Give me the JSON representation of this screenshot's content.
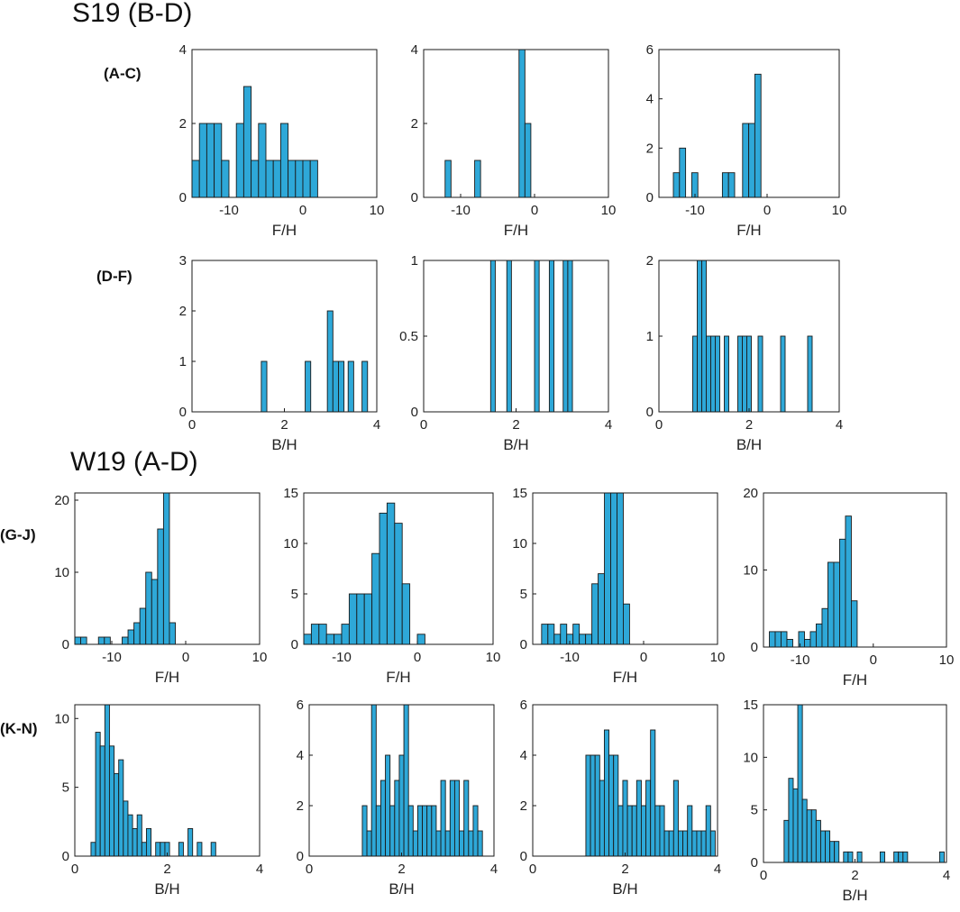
{
  "titles": {
    "s19": "S19 (B-D)",
    "w19": "W19 (A-D)"
  },
  "row_labels": {
    "r1": "(A-C)",
    "r2": "(D-F)",
    "r3": "(G-J)",
    "r4": "(K-N)"
  },
  "colors": {
    "bar_fill": "#2ea8d8",
    "bar_stroke": "#1a1a1a",
    "axis": "#1a1a1a"
  },
  "chart_data": [
    {
      "id": "p1",
      "type": "bar",
      "title": "",
      "xlabel": "F/H",
      "ylabel": "",
      "xlim": [
        -15,
        10
      ],
      "ylim": [
        0,
        4
      ],
      "xticks": [
        -10,
        0,
        10
      ],
      "yticks": [
        0,
        2,
        4
      ],
      "bin_width": 1,
      "bins": [
        [
          -15,
          1
        ],
        [
          -14,
          2
        ],
        [
          -13,
          2
        ],
        [
          -12,
          2
        ],
        [
          -11,
          1
        ],
        [
          -9,
          2
        ],
        [
          -8,
          3
        ],
        [
          -7,
          1
        ],
        [
          -6,
          2
        ],
        [
          -5,
          1
        ],
        [
          -4,
          1
        ],
        [
          -3,
          2
        ],
        [
          -2,
          1
        ],
        [
          -1,
          1
        ],
        [
          0,
          1
        ],
        [
          1,
          1
        ]
      ]
    },
    {
      "id": "p2",
      "type": "bar",
      "title": "",
      "xlabel": "F/H",
      "ylabel": "",
      "xlim": [
        -15,
        10
      ],
      "ylim": [
        0,
        4
      ],
      "xticks": [
        -10,
        0,
        10
      ],
      "yticks": [
        0,
        2,
        4
      ],
      "bin_width": 0.8,
      "bins": [
        [
          -12.1,
          1
        ],
        [
          -8.1,
          1
        ],
        [
          -2.1,
          4
        ],
        [
          -1.3,
          2
        ]
      ]
    },
    {
      "id": "p3",
      "type": "bar",
      "title": "",
      "xlabel": "F/H",
      "ylabel": "",
      "xlim": [
        -15,
        10
      ],
      "ylim": [
        0,
        6
      ],
      "xticks": [
        -10,
        0,
        10
      ],
      "yticks": [
        0,
        2,
        4,
        6
      ],
      "bin_width": 0.85,
      "bins": [
        [
          -13,
          1
        ],
        [
          -12.15,
          2
        ],
        [
          -10.45,
          1
        ],
        [
          -6.2,
          1
        ],
        [
          -5.35,
          1
        ],
        [
          -3.4,
          3
        ],
        [
          -2.55,
          3
        ],
        [
          -1.7,
          5
        ]
      ]
    },
    {
      "id": "p4",
      "type": "bar",
      "title": "",
      "xlabel": "B/H",
      "ylabel": "",
      "xlim": [
        0,
        4
      ],
      "ylim": [
        0,
        3
      ],
      "xticks": [
        0,
        2,
        4
      ],
      "yticks": [
        0,
        1,
        2,
        3
      ],
      "bin_width": 0.12,
      "bins": [
        [
          1.5,
          1
        ],
        [
          2.45,
          1
        ],
        [
          2.93,
          2
        ],
        [
          3.05,
          1
        ],
        [
          3.17,
          1
        ],
        [
          3.38,
          1
        ],
        [
          3.68,
          1
        ]
      ]
    },
    {
      "id": "p5",
      "type": "bar",
      "title": "",
      "xlabel": "B/H",
      "ylabel": "",
      "xlim": [
        0,
        4
      ],
      "ylim": [
        0,
        1
      ],
      "xticks": [
        0,
        2,
        4
      ],
      "yticks": [
        0,
        0.5,
        1
      ],
      "bin_width": 0.1,
      "bins": [
        [
          1.45,
          1
        ],
        [
          1.8,
          1
        ],
        [
          2.4,
          1
        ],
        [
          2.72,
          1
        ],
        [
          3.02,
          1
        ],
        [
          3.12,
          1
        ]
      ]
    },
    {
      "id": "p6",
      "type": "bar",
      "title": "",
      "xlabel": "B/H",
      "ylabel": "",
      "xlim": [
        0,
        4
      ],
      "ylim": [
        0,
        2
      ],
      "xticks": [
        0,
        2,
        4
      ],
      "yticks": [
        0,
        1,
        2
      ],
      "bin_width": 0.1,
      "bins": [
        [
          0.75,
          1
        ],
        [
          0.85,
          2
        ],
        [
          0.95,
          2
        ],
        [
          1.05,
          1
        ],
        [
          1.15,
          1
        ],
        [
          1.25,
          1
        ],
        [
          1.45,
          1
        ],
        [
          1.75,
          1
        ],
        [
          1.85,
          1
        ],
        [
          1.95,
          1
        ],
        [
          2.2,
          1
        ],
        [
          2.7,
          1
        ],
        [
          3.3,
          1
        ]
      ]
    },
    {
      "id": "p7",
      "type": "bar",
      "title": "",
      "xlabel": "F/H",
      "ylabel": "",
      "xlim": [
        -15,
        10
      ],
      "ylim": [
        0,
        21
      ],
      "xticks": [
        -10,
        0,
        10
      ],
      "yticks": [
        0,
        10,
        20
      ],
      "bin_width": 0.8,
      "bins": [
        [
          -15,
          1
        ],
        [
          -14.2,
          1
        ],
        [
          -11.8,
          1
        ],
        [
          -11,
          1
        ],
        [
          -8.6,
          1
        ],
        [
          -7.8,
          2
        ],
        [
          -7,
          3
        ],
        [
          -6.2,
          5
        ],
        [
          -5.4,
          10
        ],
        [
          -4.6,
          9
        ],
        [
          -3.8,
          16
        ],
        [
          -3,
          21
        ],
        [
          -2.2,
          3
        ]
      ]
    },
    {
      "id": "p8",
      "type": "bar",
      "title": "",
      "xlabel": "F/H",
      "ylabel": "",
      "xlim": [
        -15,
        10
      ],
      "ylim": [
        0,
        15
      ],
      "xticks": [
        -10,
        0,
        10
      ],
      "yticks": [
        0,
        5,
        10,
        15
      ],
      "bin_width": 1,
      "bins": [
        [
          -15,
          1
        ],
        [
          -14,
          2
        ],
        [
          -13,
          2
        ],
        [
          -12,
          1
        ],
        [
          -11,
          1
        ],
        [
          -10,
          2
        ],
        [
          -9,
          5
        ],
        [
          -8,
          5
        ],
        [
          -7,
          5
        ],
        [
          -6,
          9
        ],
        [
          -5,
          13
        ],
        [
          -4,
          14
        ],
        [
          -3,
          12
        ],
        [
          -2,
          6
        ],
        [
          0,
          1
        ]
      ]
    },
    {
      "id": "p9",
      "type": "bar",
      "title": "",
      "xlabel": "F/H",
      "ylabel": "",
      "xlim": [
        -15,
        10
      ],
      "ylim": [
        0,
        15
      ],
      "xticks": [
        -10,
        0,
        10
      ],
      "yticks": [
        0,
        5,
        10,
        15
      ],
      "bin_width": 0.85,
      "bins": [
        [
          -13.8,
          2
        ],
        [
          -12.95,
          2
        ],
        [
          -12.1,
          1
        ],
        [
          -11.25,
          2
        ],
        [
          -10.4,
          1
        ],
        [
          -9.55,
          2
        ],
        [
          -8.7,
          1
        ],
        [
          -7.85,
          1
        ],
        [
          -7,
          6
        ],
        [
          -6.15,
          7
        ],
        [
          -5.3,
          15
        ],
        [
          -4.45,
          15
        ],
        [
          -3.6,
          15
        ],
        [
          -2.75,
          4
        ]
      ]
    },
    {
      "id": "p10",
      "type": "bar",
      "title": "",
      "xlabel": "F/H",
      "ylabel": "",
      "xlim": [
        -15,
        10
      ],
      "ylim": [
        0,
        20
      ],
      "xticks": [
        -10,
        0,
        10
      ],
      "yticks": [
        0,
        10,
        20
      ],
      "bin_width": 0.8,
      "bins": [
        [
          -14.2,
          2
        ],
        [
          -13.4,
          2
        ],
        [
          -12.6,
          2
        ],
        [
          -11.8,
          1
        ],
        [
          -10.2,
          2
        ],
        [
          -9.4,
          1
        ],
        [
          -8.6,
          2
        ],
        [
          -7.8,
          3
        ],
        [
          -7,
          5
        ],
        [
          -6.2,
          11
        ],
        [
          -5.4,
          11
        ],
        [
          -4.6,
          14
        ],
        [
          -3.8,
          17
        ],
        [
          -3,
          6
        ]
      ]
    },
    {
      "id": "p11",
      "type": "bar",
      "title": "",
      "xlabel": "B/H",
      "ylabel": "",
      "xlim": [
        0,
        4
      ],
      "ylim": [
        0,
        11
      ],
      "xticks": [
        0,
        2,
        4
      ],
      "yticks": [
        0,
        5,
        10
      ],
      "bin_width": 0.1,
      "bins": [
        [
          0.35,
          1
        ],
        [
          0.45,
          9
        ],
        [
          0.55,
          8
        ],
        [
          0.65,
          11
        ],
        [
          0.75,
          8
        ],
        [
          0.85,
          6
        ],
        [
          0.95,
          7
        ],
        [
          1.05,
          4
        ],
        [
          1.15,
          3
        ],
        [
          1.25,
          2
        ],
        [
          1.35,
          3
        ],
        [
          1.45,
          1
        ],
        [
          1.55,
          2
        ],
        [
          1.75,
          1
        ],
        [
          1.85,
          1
        ],
        [
          1.95,
          1
        ],
        [
          2.25,
          1
        ],
        [
          2.45,
          2
        ],
        [
          2.65,
          1
        ],
        [
          2.95,
          1
        ]
      ]
    },
    {
      "id": "p12",
      "type": "bar",
      "title": "",
      "xlabel": "B/H",
      "ylabel": "",
      "xlim": [
        0,
        4
      ],
      "ylim": [
        0,
        6
      ],
      "xticks": [
        0,
        2,
        4
      ],
      "yticks": [
        0,
        2,
        4,
        6
      ],
      "bin_width": 0.1,
      "bins": [
        [
          1.15,
          2
        ],
        [
          1.25,
          1
        ],
        [
          1.35,
          6
        ],
        [
          1.45,
          2
        ],
        [
          1.55,
          3
        ],
        [
          1.65,
          4
        ],
        [
          1.75,
          2
        ],
        [
          1.85,
          3
        ],
        [
          1.95,
          4
        ],
        [
          2.05,
          6
        ],
        [
          2.15,
          2
        ],
        [
          2.25,
          1
        ],
        [
          2.35,
          2
        ],
        [
          2.45,
          2
        ],
        [
          2.55,
          2
        ],
        [
          2.65,
          2
        ],
        [
          2.75,
          1
        ],
        [
          2.85,
          3
        ],
        [
          2.95,
          1
        ],
        [
          3.05,
          3
        ],
        [
          3.15,
          3
        ],
        [
          3.25,
          1
        ],
        [
          3.35,
          3
        ],
        [
          3.45,
          1
        ],
        [
          3.55,
          2
        ],
        [
          3.65,
          1
        ]
      ]
    },
    {
      "id": "p13",
      "type": "bar",
      "title": "",
      "xlabel": "B/H",
      "ylabel": "",
      "xlim": [
        0,
        4
      ],
      "ylim": [
        0,
        6
      ],
      "xticks": [
        0,
        2,
        4
      ],
      "yticks": [
        0,
        2,
        4,
        6
      ],
      "bin_width": 0.1,
      "bins": [
        [
          1.15,
          4
        ],
        [
          1.25,
          4
        ],
        [
          1.35,
          4
        ],
        [
          1.45,
          3
        ],
        [
          1.55,
          5
        ],
        [
          1.65,
          4
        ],
        [
          1.75,
          4
        ],
        [
          1.85,
          2
        ],
        [
          1.95,
          3
        ],
        [
          2.05,
          2
        ],
        [
          2.15,
          2
        ],
        [
          2.25,
          3
        ],
        [
          2.35,
          2
        ],
        [
          2.45,
          3
        ],
        [
          2.55,
          5
        ],
        [
          2.65,
          2
        ],
        [
          2.75,
          2
        ],
        [
          2.85,
          1
        ],
        [
          2.95,
          1
        ],
        [
          3.05,
          3
        ],
        [
          3.15,
          1
        ],
        [
          3.25,
          1
        ],
        [
          3.35,
          2
        ],
        [
          3.45,
          1
        ],
        [
          3.55,
          1
        ],
        [
          3.65,
          1
        ],
        [
          3.75,
          2
        ],
        [
          3.85,
          1
        ]
      ]
    },
    {
      "id": "p14",
      "type": "bar",
      "title": "",
      "xlabel": "B/H",
      "ylabel": "",
      "xlim": [
        0,
        4
      ],
      "ylim": [
        0,
        15
      ],
      "xticks": [
        0,
        2,
        4
      ],
      "yticks": [
        0,
        5,
        10,
        15
      ],
      "bin_width": 0.1,
      "bins": [
        [
          0.45,
          4
        ],
        [
          0.55,
          8
        ],
        [
          0.65,
          7
        ],
        [
          0.75,
          15
        ],
        [
          0.85,
          6
        ],
        [
          0.95,
          5
        ],
        [
          1.05,
          5
        ],
        [
          1.15,
          4
        ],
        [
          1.25,
          3
        ],
        [
          1.35,
          3
        ],
        [
          1.45,
          2
        ],
        [
          1.55,
          2
        ],
        [
          1.75,
          1
        ],
        [
          1.85,
          1
        ],
        [
          2.05,
          1
        ],
        [
          2.55,
          1
        ],
        [
          2.85,
          1
        ],
        [
          2.95,
          1
        ],
        [
          3.05,
          1
        ],
        [
          3.85,
          1
        ]
      ]
    }
  ]
}
